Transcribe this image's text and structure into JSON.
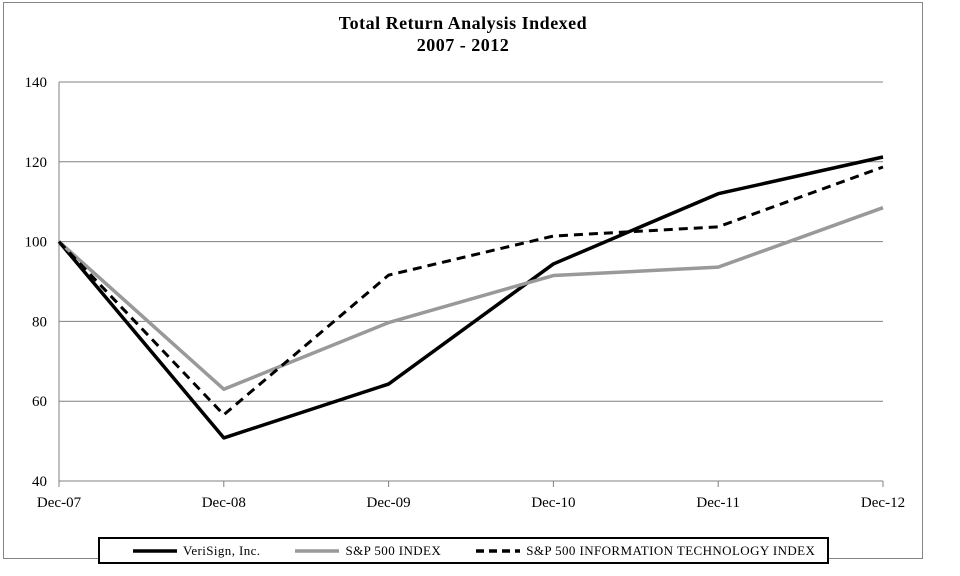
{
  "figure": {
    "title_line1": "Total Return Analysis Indexed",
    "title_line2": "2007 - 2012"
  },
  "chart_data": {
    "type": "line",
    "title": "Total Return Analysis Indexed 2007 - 2012",
    "categories": [
      "Dec-07",
      "Dec-08",
      "Dec-09",
      "Dec-10",
      "Dec-11",
      "Dec-12"
    ],
    "series": [
      {
        "name": "VeriSign, Inc.",
        "values": [
          100,
          50.8,
          64.3,
          94.4,
          112.0,
          121.2
        ],
        "color": "#000000",
        "dash": "",
        "width": 3.5
      },
      {
        "name": "S&P 500 INDEX",
        "values": [
          100,
          63.0,
          79.7,
          91.5,
          93.6,
          108.5
        ],
        "color": "#999999",
        "dash": "",
        "width": 3.5
      },
      {
        "name": "S&P 500 INFORMATION TECHNOLOGY INDEX",
        "values": [
          100,
          56.6,
          91.6,
          101.4,
          103.7,
          118.7
        ],
        "color": "#000000",
        "dash": "9,6",
        "width": 3
      }
    ],
    "xlabel": "",
    "ylabel": "",
    "ylim": [
      40,
      140
    ],
    "yticks": [
      40,
      60,
      80,
      100,
      120,
      140
    ],
    "grid": true,
    "legend_position": "bottom",
    "colors": {
      "grid_line": "#808080",
      "axis_line": "#808080",
      "tick_label": "#000000",
      "outer_border": "#848484"
    }
  }
}
